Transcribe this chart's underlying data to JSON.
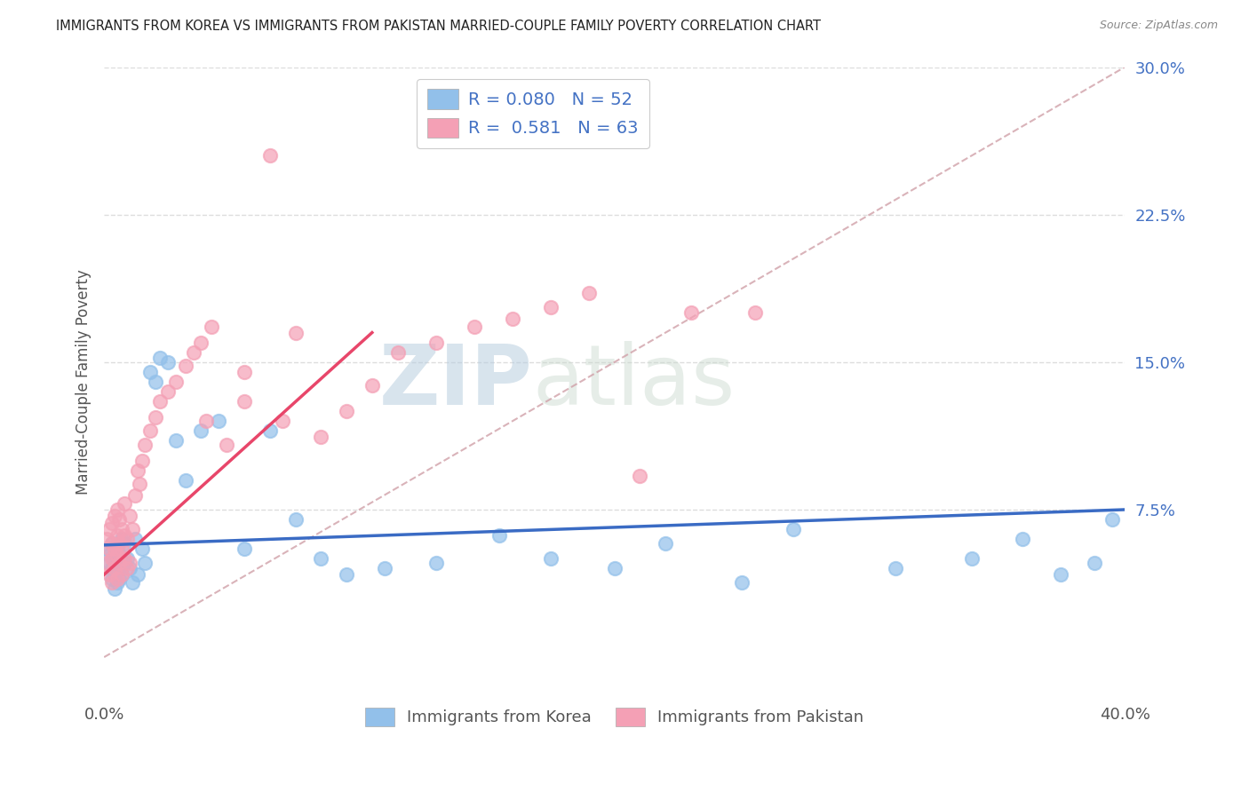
{
  "title": "IMMIGRANTS FROM KOREA VS IMMIGRANTS FROM PAKISTAN MARRIED-COUPLE FAMILY POVERTY CORRELATION CHART",
  "source": "Source: ZipAtlas.com",
  "ylabel": "Married-Couple Family Poverty",
  "xmin": 0.0,
  "xmax": 0.4,
  "ymin": -0.02,
  "ymax": 0.3,
  "ytick_vals_right": [
    0.075,
    0.15,
    0.225,
    0.3
  ],
  "ytick_labels_right": [
    "7.5%",
    "15.0%",
    "22.5%",
    "30.0%"
  ],
  "korea_R": 0.08,
  "korea_N": 52,
  "pakistan_R": 0.581,
  "pakistan_N": 63,
  "korea_color": "#92C0EA",
  "pakistan_color": "#F4A0B5",
  "korea_line_color": "#3A6BC4",
  "pakistan_line_color": "#E8466A",
  "ref_line_color": "#C8C8C8",
  "legend_korea_label": "Immigrants from Korea",
  "legend_pakistan_label": "Immigrants from Pakistan",
  "watermark_zip": "ZIP",
  "watermark_atlas": "atlas",
  "background_color": "#FFFFFF",
  "title_color": "#222222",
  "axis_label_color": "#555555",
  "right_tick_color": "#4472C4",
  "grid_color": "#DDDDDD",
  "korea_scatter_x": [
    0.001,
    0.002,
    0.002,
    0.003,
    0.003,
    0.003,
    0.004,
    0.004,
    0.004,
    0.005,
    0.005,
    0.005,
    0.006,
    0.006,
    0.007,
    0.007,
    0.008,
    0.008,
    0.009,
    0.01,
    0.011,
    0.012,
    0.013,
    0.015,
    0.016,
    0.018,
    0.02,
    0.022,
    0.025,
    0.028,
    0.032,
    0.038,
    0.045,
    0.055,
    0.065,
    0.075,
    0.085,
    0.095,
    0.11,
    0.13,
    0.155,
    0.175,
    0.2,
    0.22,
    0.25,
    0.27,
    0.31,
    0.34,
    0.36,
    0.375,
    0.388,
    0.395
  ],
  "korea_scatter_y": [
    0.055,
    0.048,
    0.052,
    0.04,
    0.045,
    0.058,
    0.035,
    0.042,
    0.05,
    0.038,
    0.045,
    0.055,
    0.04,
    0.052,
    0.042,
    0.06,
    0.048,
    0.058,
    0.05,
    0.045,
    0.038,
    0.06,
    0.042,
    0.055,
    0.048,
    0.145,
    0.14,
    0.152,
    0.15,
    0.11,
    0.09,
    0.115,
    0.12,
    0.055,
    0.115,
    0.07,
    0.05,
    0.042,
    0.045,
    0.048,
    0.062,
    0.05,
    0.045,
    0.058,
    0.038,
    0.065,
    0.045,
    0.05,
    0.06,
    0.042,
    0.048,
    0.07
  ],
  "pakistan_scatter_x": [
    0.001,
    0.001,
    0.002,
    0.002,
    0.002,
    0.003,
    0.003,
    0.003,
    0.003,
    0.004,
    0.004,
    0.004,
    0.005,
    0.005,
    0.005,
    0.005,
    0.006,
    0.006,
    0.006,
    0.007,
    0.007,
    0.007,
    0.008,
    0.008,
    0.008,
    0.009,
    0.009,
    0.01,
    0.01,
    0.011,
    0.012,
    0.013,
    0.014,
    0.015,
    0.016,
    0.018,
    0.02,
    0.022,
    0.025,
    0.028,
    0.032,
    0.035,
    0.038,
    0.042,
    0.048,
    0.055,
    0.065,
    0.075,
    0.085,
    0.095,
    0.105,
    0.115,
    0.13,
    0.145,
    0.16,
    0.175,
    0.19,
    0.21,
    0.23,
    0.255,
    0.055,
    0.07,
    0.04
  ],
  "pakistan_scatter_y": [
    0.048,
    0.06,
    0.042,
    0.055,
    0.065,
    0.038,
    0.05,
    0.058,
    0.068,
    0.045,
    0.055,
    0.072,
    0.04,
    0.052,
    0.062,
    0.075,
    0.048,
    0.058,
    0.07,
    0.042,
    0.055,
    0.065,
    0.05,
    0.062,
    0.078,
    0.045,
    0.06,
    0.048,
    0.072,
    0.065,
    0.082,
    0.095,
    0.088,
    0.1,
    0.108,
    0.115,
    0.122,
    0.13,
    0.135,
    0.14,
    0.148,
    0.155,
    0.16,
    0.168,
    0.108,
    0.145,
    0.255,
    0.165,
    0.112,
    0.125,
    0.138,
    0.155,
    0.16,
    0.168,
    0.172,
    0.178,
    0.185,
    0.092,
    0.175,
    0.175,
    0.13,
    0.12,
    0.12
  ]
}
